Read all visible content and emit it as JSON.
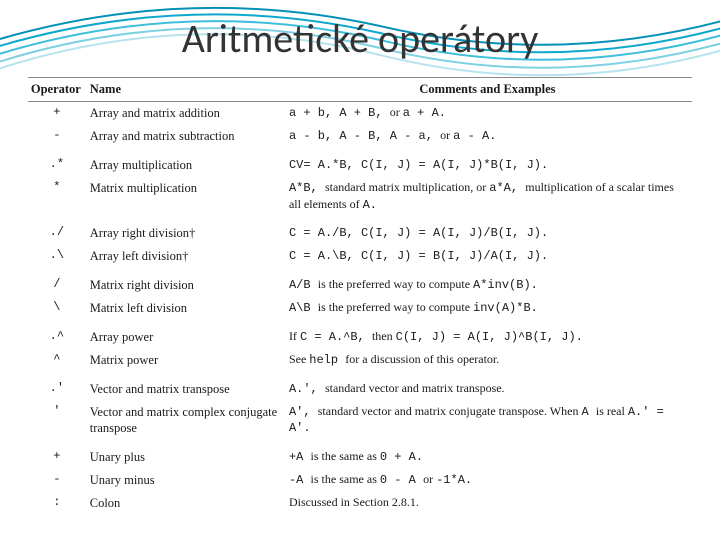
{
  "title": "Aritmetické operátory",
  "swoosh_colors": {
    "line1": "#b7e3ee",
    "line2": "#7fd0e2",
    "line3": "#3fbedb",
    "line4": "#0fa8cc",
    "line5": "#0590b5"
  },
  "table": {
    "header": {
      "operator": "Operator",
      "name": "Name",
      "comments": "Comments and Examples"
    },
    "rows": [
      {
        "op": "+",
        "name": "Array and matrix addition",
        "com_mono": "a + b, A + B, ",
        "com_tail": "or ",
        "com_mono2": "a + A."
      },
      {
        "op": "-",
        "name": "Array and matrix subtraction",
        "com_mono": "a - b, A - B, A - a, ",
        "com_tail": "or ",
        "com_mono2": "a - A."
      },
      {
        "gap": true,
        "op": ".*",
        "name": "Array multiplication",
        "com_mono": "CV= A.*B, C(I, J) = A(I, J)*B(I, J)."
      },
      {
        "op": "*",
        "name": "Matrix multiplication",
        "com_mono": "A*B, ",
        "com_plain": "standard matrix multiplication, or ",
        "com_mono2": "a*A, ",
        "com_plain2": "multiplication of a scalar times all elements of ",
        "com_mono3": "A."
      },
      {
        "gap": true,
        "op": "./",
        "name": "Array right division†",
        "com_mono": "C = A./B, C(I, J) = A(I, J)/B(I, J)."
      },
      {
        "op": ".\\",
        "name": "Array left division†",
        "com_mono": "C = A.\\B, C(I, J) = B(I, J)/A(I, J)."
      },
      {
        "gap": true,
        "op": "/",
        "name": "Matrix right division",
        "com_mono": "A/B ",
        "com_plain": "is the preferred way to compute ",
        "com_mono2": "A*inv(B)."
      },
      {
        "op": "\\",
        "name": "Matrix left division",
        "com_mono": "A\\B ",
        "com_plain": "is the preferred way to compute ",
        "com_mono2": "inv(A)*B."
      },
      {
        "gap": true,
        "op": ".^",
        "name": "Array power",
        "com_plain0": "If ",
        "com_mono": "C = A.^B, ",
        "com_plain": "then ",
        "com_mono2": "C(I, J) = A(I, J)^B(I, J)."
      },
      {
        "op": "^",
        "name": "Matrix power",
        "com_plain0": "See ",
        "com_mono": "help ",
        "com_plain": "for a discussion of this operator."
      },
      {
        "gap": true,
        "op": ".'",
        "name": "Vector and matrix transpose",
        "com_mono": "A.', ",
        "com_plain": "standard vector and matrix transpose."
      },
      {
        "op": "'",
        "name": "Vector and matrix complex conjugate transpose",
        "com_mono": "A', ",
        "com_plain": "standard vector and matrix conjugate transpose. When ",
        "com_mono2": "A ",
        "com_plain2": "is real ",
        "com_mono3": "A.' = A'."
      },
      {
        "gap": true,
        "op": "+",
        "name": "Unary plus",
        "com_mono": "+A ",
        "com_plain": "is the same as ",
        "com_mono2": "0 + A."
      },
      {
        "op": "-",
        "name": "Unary minus",
        "com_mono": "-A ",
        "com_plain": "is the same as ",
        "com_mono2": " 0 - A ",
        "com_plain2": "or ",
        "com_mono3": "-1*A."
      },
      {
        "op": ":",
        "name": "Colon",
        "com_plain": "Discussed in Section 2.8.1."
      }
    ]
  }
}
